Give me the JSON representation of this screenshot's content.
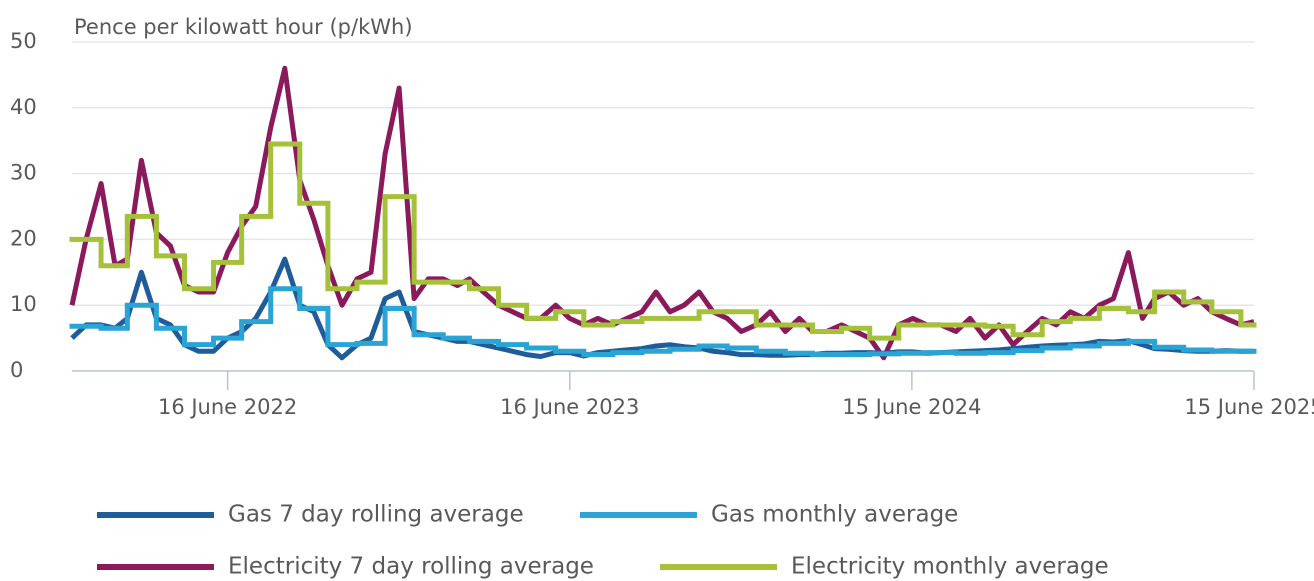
{
  "chart_data": {
    "type": "line",
    "y_label": "Pence per kilowatt hour (p/kWh)",
    "xlim": [
      "2022-01-01",
      "2025-06-15"
    ],
    "xticks": [
      {
        "value": "2022-06-16",
        "label": "16 June 2022"
      },
      {
        "value": "2023-06-16",
        "label": "16 June 2023"
      },
      {
        "value": "2024-06-15",
        "label": "15 June 2024"
      },
      {
        "value": "2025-06-15",
        "label": "15 June 2025"
      }
    ],
    "ylim": [
      0,
      50
    ],
    "yticks": [
      0,
      10,
      20,
      30,
      40,
      50
    ],
    "grid": true,
    "legend": "bottom",
    "series": [
      {
        "name": "Gas 7 day rolling average",
        "color": "#1f5c99",
        "drawstyle": "line",
        "x": [
          "2022-01-01",
          "2022-01-16",
          "2022-02-01",
          "2022-02-16",
          "2022-03-01",
          "2022-03-16",
          "2022-04-01",
          "2022-04-16",
          "2022-05-01",
          "2022-05-16",
          "2022-06-01",
          "2022-06-16",
          "2022-07-01",
          "2022-07-16",
          "2022-08-01",
          "2022-08-16",
          "2022-09-01",
          "2022-09-16",
          "2022-10-01",
          "2022-10-16",
          "2022-11-01",
          "2022-11-16",
          "2022-12-01",
          "2022-12-16",
          "2023-01-01",
          "2023-01-16",
          "2023-02-01",
          "2023-02-16",
          "2023-03-01",
          "2023-03-16",
          "2023-04-01",
          "2023-04-16",
          "2023-05-01",
          "2023-05-16",
          "2023-06-01",
          "2023-06-16",
          "2023-07-01",
          "2023-07-16",
          "2023-08-01",
          "2023-08-16",
          "2023-09-01",
          "2023-09-16",
          "2023-10-01",
          "2023-10-16",
          "2023-11-01",
          "2023-11-16",
          "2023-12-01",
          "2023-12-16",
          "2024-01-01",
          "2024-01-16",
          "2024-02-01",
          "2024-02-16",
          "2024-03-01",
          "2024-03-16",
          "2024-04-01",
          "2024-04-16",
          "2024-05-01",
          "2024-05-16",
          "2024-06-01",
          "2024-06-16",
          "2024-07-01",
          "2024-07-16",
          "2024-08-01",
          "2024-08-16",
          "2024-09-01",
          "2024-09-16",
          "2024-10-01",
          "2024-10-16",
          "2024-11-01",
          "2024-11-16",
          "2024-12-01",
          "2024-12-16",
          "2025-01-01",
          "2025-01-16",
          "2025-02-01",
          "2025-02-16",
          "2025-03-01",
          "2025-03-16",
          "2025-04-01",
          "2025-04-16",
          "2025-05-01",
          "2025-05-16",
          "2025-06-01",
          "2025-06-15"
        ],
        "values": [
          5,
          7,
          7,
          6.5,
          8,
          15,
          8,
          7,
          4,
          3,
          3,
          5,
          6,
          8,
          12,
          17,
          10,
          9,
          4,
          2,
          4,
          5,
          11,
          12,
          6,
          5.5,
          5,
          4.5,
          4.5,
          4,
          3.5,
          3,
          2.5,
          2.2,
          2.8,
          2.8,
          2.3,
          2.8,
          3,
          3.2,
          3.4,
          3.8,
          4,
          3.7,
          3.5,
          3,
          2.8,
          2.5,
          2.5,
          2.4,
          2.4,
          2.5,
          2.5,
          2.7,
          2.7,
          2.8,
          2.8,
          2.7,
          2.9,
          2.9,
          2.7,
          2.8,
          2.9,
          3,
          3.1,
          3.2,
          3.4,
          3.6,
          3.8,
          3.9,
          4,
          4.1,
          4.5,
          4.4,
          4.6,
          4,
          3.4,
          3.3,
          3.1,
          3,
          3,
          3.1,
          3,
          3
        ]
      },
      {
        "name": "Gas monthly average",
        "color": "#2aa3d5",
        "drawstyle": "steps-post",
        "x": [
          "2022-01-01",
          "2022-02-01",
          "2022-03-01",
          "2022-04-01",
          "2022-05-01",
          "2022-06-01",
          "2022-07-01",
          "2022-08-01",
          "2022-09-01",
          "2022-10-01",
          "2022-11-01",
          "2022-12-01",
          "2023-01-01",
          "2023-02-01",
          "2023-03-01",
          "2023-04-01",
          "2023-05-01",
          "2023-06-01",
          "2023-07-01",
          "2023-08-01",
          "2023-09-01",
          "2023-10-01",
          "2023-11-01",
          "2023-12-01",
          "2024-01-01",
          "2024-02-01",
          "2024-03-01",
          "2024-04-01",
          "2024-05-01",
          "2024-06-01",
          "2024-07-01",
          "2024-08-01",
          "2024-09-01",
          "2024-10-01",
          "2024-11-01",
          "2024-12-01",
          "2025-01-01",
          "2025-02-01",
          "2025-03-01",
          "2025-04-01",
          "2025-05-01",
          "2025-06-01"
        ],
        "values": [
          6.8,
          6.5,
          10,
          6.5,
          4,
          5,
          7.5,
          12.5,
          9.5,
          4,
          4.2,
          9.5,
          5.5,
          5,
          4.5,
          4,
          3.5,
          3,
          2.5,
          2.8,
          3,
          3.3,
          3.8,
          3.5,
          3,
          2.7,
          2.5,
          2.5,
          2.6,
          2.7,
          2.8,
          2.7,
          2.8,
          3.1,
          3.5,
          3.8,
          4.2,
          4.5,
          3.6,
          3.2,
          3,
          3
        ]
      },
      {
        "name": "Electricity 7 day rolling average",
        "color": "#8b1a5c",
        "drawstyle": "line",
        "x": [
          "2022-01-01",
          "2022-01-16",
          "2022-02-01",
          "2022-02-16",
          "2022-03-01",
          "2022-03-16",
          "2022-04-01",
          "2022-04-16",
          "2022-05-01",
          "2022-05-16",
          "2022-06-01",
          "2022-06-16",
          "2022-07-01",
          "2022-07-16",
          "2022-08-01",
          "2022-08-16",
          "2022-09-01",
          "2022-09-16",
          "2022-10-01",
          "2022-10-16",
          "2022-11-01",
          "2022-11-16",
          "2022-12-01",
          "2022-12-16",
          "2023-01-01",
          "2023-01-16",
          "2023-02-01",
          "2023-02-16",
          "2023-03-01",
          "2023-03-16",
          "2023-04-01",
          "2023-04-16",
          "2023-05-01",
          "2023-05-16",
          "2023-06-01",
          "2023-06-16",
          "2023-07-01",
          "2023-07-16",
          "2023-08-01",
          "2023-08-16",
          "2023-09-01",
          "2023-09-16",
          "2023-10-01",
          "2023-10-16",
          "2023-11-01",
          "2023-11-16",
          "2023-12-01",
          "2023-12-16",
          "2024-01-01",
          "2024-01-16",
          "2024-02-01",
          "2024-02-16",
          "2024-03-01",
          "2024-03-16",
          "2024-04-01",
          "2024-04-16",
          "2024-05-01",
          "2024-05-16",
          "2024-06-01",
          "2024-06-16",
          "2024-07-01",
          "2024-07-16",
          "2024-08-01",
          "2024-08-16",
          "2024-09-01",
          "2024-09-16",
          "2024-10-01",
          "2024-10-16",
          "2024-11-01",
          "2024-11-16",
          "2024-12-01",
          "2024-12-16",
          "2025-01-01",
          "2025-01-16",
          "2025-02-01",
          "2025-02-16",
          "2025-03-01",
          "2025-03-16",
          "2025-04-01",
          "2025-04-16",
          "2025-05-01",
          "2025-05-16",
          "2025-06-01",
          "2025-06-15"
        ],
        "values": [
          10,
          20,
          28.5,
          16,
          17,
          32,
          21,
          19,
          13,
          12,
          12,
          18,
          22,
          25,
          37,
          46,
          29,
          23,
          16,
          10,
          14,
          15,
          33,
          43,
          11,
          14,
          14,
          13,
          14,
          12,
          10,
          9,
          8,
          8,
          10,
          8,
          7,
          8,
          7,
          8,
          9,
          12,
          9,
          10,
          12,
          9,
          8,
          6,
          7,
          9,
          6,
          8,
          6,
          6,
          7,
          6,
          5,
          2,
          7,
          8,
          7,
          7,
          6,
          8,
          5,
          7,
          4,
          6,
          8,
          7,
          9,
          8,
          10,
          11,
          18,
          8,
          11,
          12,
          10,
          11,
          9,
          8,
          7,
          7.5
        ]
      },
      {
        "name": "Electricity monthly average",
        "color": "#a5c13a",
        "drawstyle": "steps-post",
        "x": [
          "2022-01-01",
          "2022-02-01",
          "2022-03-01",
          "2022-04-01",
          "2022-05-01",
          "2022-06-01",
          "2022-07-01",
          "2022-08-01",
          "2022-09-01",
          "2022-10-01",
          "2022-11-01",
          "2022-12-01",
          "2023-01-01",
          "2023-02-01",
          "2023-03-01",
          "2023-04-01",
          "2023-05-01",
          "2023-06-01",
          "2023-07-01",
          "2023-08-01",
          "2023-09-01",
          "2023-10-01",
          "2023-11-01",
          "2023-12-01",
          "2024-01-01",
          "2024-02-01",
          "2024-03-01",
          "2024-04-01",
          "2024-05-01",
          "2024-06-01",
          "2024-07-01",
          "2024-08-01",
          "2024-09-01",
          "2024-10-01",
          "2024-11-01",
          "2024-12-01",
          "2025-01-01",
          "2025-02-01",
          "2025-03-01",
          "2025-04-01",
          "2025-05-01",
          "2025-06-01"
        ],
        "values": [
          20,
          16,
          23.5,
          17.5,
          12.5,
          16.5,
          23.5,
          34.5,
          25.5,
          12.5,
          13.5,
          26.5,
          13.5,
          13.5,
          12.5,
          10,
          8,
          9,
          7,
          7.5,
          8,
          8,
          9,
          9,
          7,
          7,
          6,
          6.5,
          5,
          7,
          7,
          7,
          6.8,
          5.5,
          7.5,
          8,
          9.5,
          9,
          12,
          10.5,
          9,
          7
        ]
      }
    ]
  }
}
